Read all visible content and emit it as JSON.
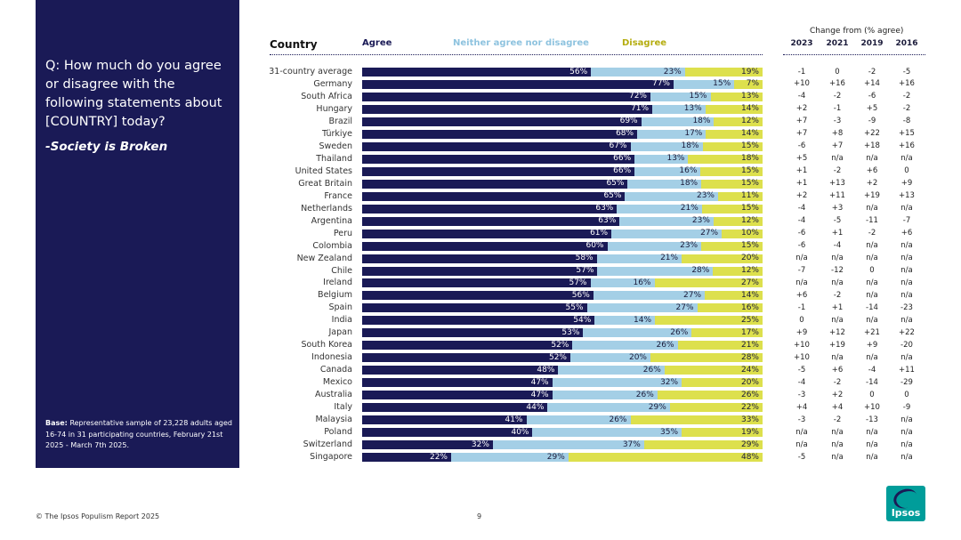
{
  "sidebar": {
    "question": "Q: How much do you agree or disagree with the following statements about [COUNTRY] today?",
    "statement": "-Society is Broken",
    "base_label": "Base:",
    "base_text": "Representative sample of 23,228 adults aged 16-74 in 31 participating countries, February 21st 2025 - March 7th 2025."
  },
  "header": {
    "country": "Country",
    "agree": "Agree",
    "neither": "Neither agree nor disagree",
    "disagree": "Disagree",
    "change_title": "Change from (% agree)",
    "years": [
      "2023",
      "2021",
      "2019",
      "2016"
    ]
  },
  "colors": {
    "agree": "#1a1a56",
    "neither": "#a4cfe6",
    "disagree": "#dde04d",
    "panel": "#1a1a56"
  },
  "chart_data": {
    "type": "bar",
    "orientation": "horizontal",
    "stacked": true,
    "title": "Society is Broken",
    "xlim": [
      0,
      100
    ],
    "categories": [
      "31-country average",
      "Germany",
      "South Africa",
      "Hungary",
      "Brazil",
      "Türkiye",
      "Sweden",
      "Thailand",
      "United States",
      "Great Britain",
      "France",
      "Netherlands",
      "Argentina",
      "Peru",
      "Colombia",
      "New Zealand",
      "Chile",
      "Ireland",
      "Belgium",
      "Spain",
      "India",
      "Japan",
      "South Korea",
      "Indonesia",
      "Canada",
      "Mexico",
      "Australia",
      "Italy",
      "Malaysia",
      "Poland",
      "Switzerland",
      "Singapore"
    ],
    "series": [
      {
        "name": "Agree",
        "values": [
          56,
          77,
          72,
          71,
          69,
          68,
          67,
          66,
          66,
          65,
          65,
          63,
          63,
          61,
          60,
          58,
          57,
          57,
          56,
          55,
          54,
          53,
          52,
          52,
          48,
          47,
          47,
          44,
          41,
          40,
          32,
          22
        ]
      },
      {
        "name": "Neither agree nor disagree",
        "values": [
          23,
          15,
          15,
          13,
          18,
          17,
          18,
          13,
          16,
          18,
          23,
          21,
          23,
          27,
          23,
          21,
          28,
          16,
          27,
          27,
          14,
          26,
          26,
          20,
          26,
          32,
          26,
          29,
          26,
          35,
          37,
          29
        ]
      },
      {
        "name": "Disagree",
        "values": [
          19,
          7,
          13,
          14,
          12,
          14,
          15,
          18,
          15,
          15,
          11,
          15,
          12,
          10,
          15,
          20,
          12,
          27,
          14,
          16,
          25,
          17,
          21,
          28,
          24,
          20,
          26,
          22,
          33,
          19,
          29,
          48
        ]
      }
    ],
    "change_from_agree": {
      "2023": [
        "-1",
        "+10",
        "-4",
        "+2",
        "+7",
        "+7",
        "-6",
        "+5",
        "+1",
        "+1",
        "+2",
        "-4",
        "-4",
        "-6",
        "-6",
        "n/a",
        "-7",
        "n/a",
        "+6",
        "-1",
        "0",
        "+9",
        "+10",
        "+10",
        "-5",
        "-4",
        "-3",
        "+4",
        "-3",
        "n/a",
        "n/a",
        "-5"
      ],
      "2021": [
        "0",
        "+16",
        "-2",
        "-1",
        "-3",
        "+8",
        "+7",
        "n/a",
        "-2",
        "+13",
        "+11",
        "+3",
        "-5",
        "+1",
        "-4",
        "n/a",
        "-12",
        "n/a",
        "-2",
        "+1",
        "n/a",
        "+12",
        "+19",
        "n/a",
        "+6",
        "-2",
        "+2",
        "+4",
        "-2",
        "n/a",
        "n/a",
        "n/a"
      ],
      "2019": [
        "-2",
        "+14",
        "-6",
        "+5",
        "-9",
        "+22",
        "+18",
        "n/a",
        "+6",
        "+2",
        "+19",
        "n/a",
        "-11",
        "-2",
        "n/a",
        "n/a",
        "0",
        "n/a",
        "n/a",
        "-14",
        "n/a",
        "+21",
        "+9",
        "n/a",
        "-4",
        "-14",
        "0",
        "+10",
        "-13",
        "n/a",
        "n/a",
        "n/a"
      ],
      "2016": [
        "-5",
        "+16",
        "-2",
        "-2",
        "-8",
        "+15",
        "+16",
        "n/a",
        "0",
        "+9",
        "+13",
        "n/a",
        "-7",
        "+6",
        "n/a",
        "n/a",
        "n/a",
        "n/a",
        "n/a",
        "-23",
        "n/a",
        "+22",
        "-20",
        "n/a",
        "+11",
        "-29",
        "0",
        "-9",
        "n/a",
        "n/a",
        "n/a",
        "n/a"
      ]
    }
  },
  "footer": {
    "copyright": "© The Ipsos Populism Report 2025",
    "page": "9"
  },
  "logo": {
    "text": "Ipsos"
  }
}
